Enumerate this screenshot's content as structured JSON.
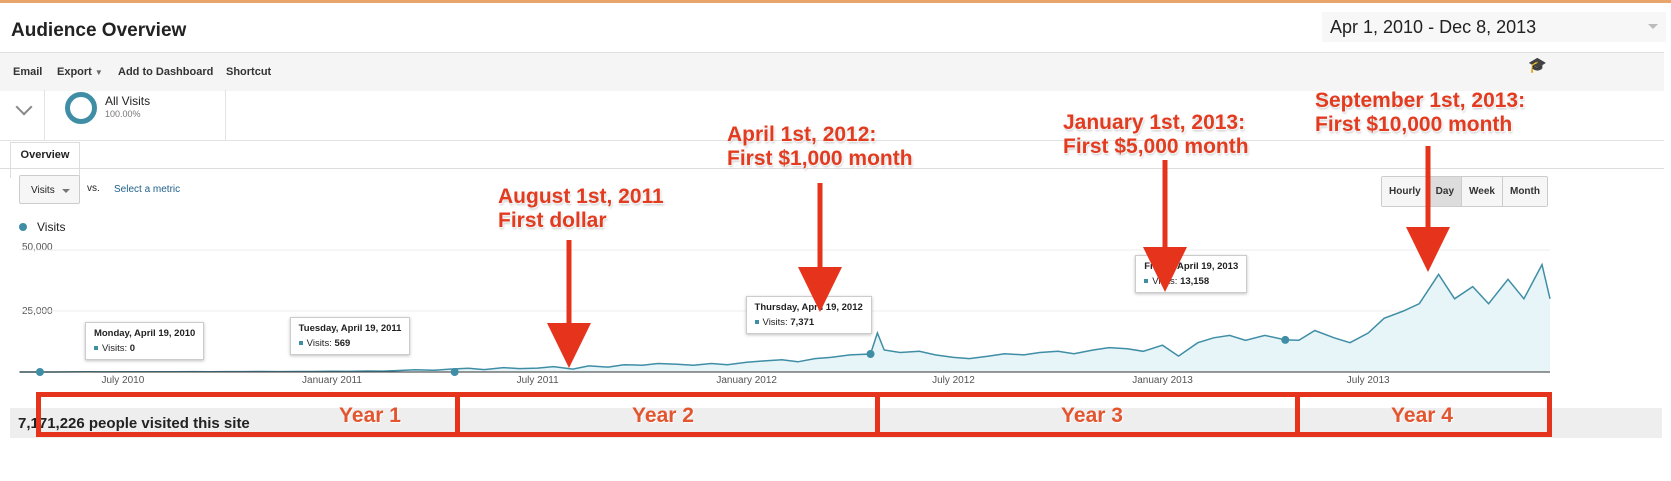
{
  "header": {
    "title": "Audience Overview",
    "date_range": "Apr 1, 2010 - Dec 8, 2013"
  },
  "toolbar": {
    "email": "Email",
    "export": "Export",
    "add_to_dashboard": "Add to Dashboard",
    "shortcut": "Shortcut",
    "help_icon": "graduation-cap-icon"
  },
  "segment": {
    "name": "All Visits",
    "percent": "100.00%"
  },
  "tabs": [
    {
      "label": "Overview"
    }
  ],
  "metric": {
    "selected": "Visits",
    "vs": "vs.",
    "select_metric": "Select a metric"
  },
  "granularity": {
    "options": [
      "Hourly",
      "Day",
      "Week",
      "Month"
    ],
    "active": "Day"
  },
  "colors": {
    "line": "#3f8ea6",
    "fill": "#e7f4f8",
    "annotation": "#e5331c"
  },
  "chart_data": {
    "type": "area",
    "legend": "Visits",
    "y_ticks": [
      "50,000",
      "25,000"
    ],
    "ylim": [
      0,
      50000
    ],
    "x_ticks": [
      "July 2010",
      "January 2011",
      "July 2011",
      "January 2012",
      "July 2012",
      "January 2013",
      "July 2013"
    ],
    "xlim": [
      "2010-04-01",
      "2013-12-08"
    ],
    "points": [
      [
        "2010-04-01",
        0
      ],
      [
        "2010-04-15",
        0
      ],
      [
        "2010-05-01",
        0
      ],
      [
        "2010-05-15",
        50
      ],
      [
        "2010-06-01",
        80
      ],
      [
        "2010-06-15",
        60
      ],
      [
        "2010-07-01",
        100
      ],
      [
        "2010-07-15",
        90
      ],
      [
        "2010-08-01",
        120
      ],
      [
        "2010-08-15",
        100
      ],
      [
        "2010-09-01",
        150
      ],
      [
        "2010-09-15",
        120
      ],
      [
        "2010-10-01",
        180
      ],
      [
        "2010-10-15",
        150
      ],
      [
        "2010-11-01",
        200
      ],
      [
        "2010-11-15",
        170
      ],
      [
        "2010-12-01",
        220
      ],
      [
        "2010-12-15",
        200
      ],
      [
        "2011-01-01",
        300
      ],
      [
        "2011-01-15",
        250
      ],
      [
        "2011-02-01",
        400
      ],
      [
        "2011-02-15",
        350
      ],
      [
        "2011-03-01",
        600
      ],
      [
        "2011-03-15",
        900
      ],
      [
        "2011-04-01",
        700
      ],
      [
        "2011-04-15",
        1200
      ],
      [
        "2011-05-01",
        1500
      ],
      [
        "2011-05-15",
        1000
      ],
      [
        "2011-06-01",
        1800
      ],
      [
        "2011-06-15",
        1400
      ],
      [
        "2011-07-01",
        1600
      ],
      [
        "2011-07-15",
        2200
      ],
      [
        "2011-08-01",
        1200
      ],
      [
        "2011-08-15",
        2500
      ],
      [
        "2011-09-01",
        2000
      ],
      [
        "2011-09-15",
        3000
      ],
      [
        "2011-10-01",
        2800
      ],
      [
        "2011-10-15",
        3500
      ],
      [
        "2011-11-01",
        3200
      ],
      [
        "2011-11-15",
        2800
      ],
      [
        "2011-12-01",
        3500
      ],
      [
        "2011-12-15",
        3000
      ],
      [
        "2012-01-01",
        4000
      ],
      [
        "2012-01-15",
        4500
      ],
      [
        "2012-02-01",
        5000
      ],
      [
        "2012-02-15",
        4200
      ],
      [
        "2012-03-01",
        5500
      ],
      [
        "2012-03-15",
        6000
      ],
      [
        "2012-04-01",
        7000
      ],
      [
        "2012-04-19",
        7371
      ],
      [
        "2012-04-25",
        16000
      ],
      [
        "2012-05-01",
        9000
      ],
      [
        "2012-05-15",
        8000
      ],
      [
        "2012-06-01",
        8500
      ],
      [
        "2012-06-15",
        7000
      ],
      [
        "2012-07-01",
        6000
      ],
      [
        "2012-07-15",
        5500
      ],
      [
        "2012-08-01",
        6500
      ],
      [
        "2012-08-15",
        7500
      ],
      [
        "2012-09-01",
        7000
      ],
      [
        "2012-09-15",
        8000
      ],
      [
        "2012-10-01",
        8500
      ],
      [
        "2012-10-15",
        7500
      ],
      [
        "2012-11-01",
        9000
      ],
      [
        "2012-11-15",
        10000
      ],
      [
        "2012-12-01",
        9500
      ],
      [
        "2012-12-15",
        8500
      ],
      [
        "2013-01-01",
        11000
      ],
      [
        "2013-01-15",
        6500
      ],
      [
        "2013-02-01",
        12000
      ],
      [
        "2013-02-15",
        14000
      ],
      [
        "2013-03-01",
        15000
      ],
      [
        "2013-03-15",
        13000
      ],
      [
        "2013-04-01",
        15000
      ],
      [
        "2013-04-19",
        13158
      ],
      [
        "2013-05-01",
        13000
      ],
      [
        "2013-05-15",
        17000
      ],
      [
        "2013-06-01",
        14000
      ],
      [
        "2013-06-15",
        12000
      ],
      [
        "2013-07-01",
        16000
      ],
      [
        "2013-07-15",
        22000
      ],
      [
        "2013-08-01",
        25000
      ],
      [
        "2013-08-15",
        28000
      ],
      [
        "2013-09-01",
        40000
      ],
      [
        "2013-09-15",
        30000
      ],
      [
        "2013-10-01",
        35000
      ],
      [
        "2013-10-15",
        28000
      ],
      [
        "2013-11-01",
        38000
      ],
      [
        "2013-11-15",
        30000
      ],
      [
        "2013-12-01",
        44000
      ],
      [
        "2013-12-08",
        30000
      ]
    ],
    "tooltips": [
      {
        "date": "Monday, April 19, 2010",
        "label": "Visits:",
        "value": "0",
        "x": "2010-04-19"
      },
      {
        "date": "Tuesday, April 19, 2011",
        "label": "Visits:",
        "value": "569",
        "x": "2011-04-19"
      },
      {
        "date": "Thursday, April 19, 2012",
        "label": "Visits:",
        "value": "7,371",
        "x": "2012-04-19"
      },
      {
        "date": "Friday, April 19, 2013",
        "label": "Visits:",
        "value": "13,158",
        "x": "2013-04-19"
      }
    ]
  },
  "annotations": [
    {
      "line1": "August 1st, 2011",
      "line2": "First dollar"
    },
    {
      "line1": "April 1st, 2012:",
      "line2": "First $1,000 month"
    },
    {
      "line1": "January 1st, 2013:",
      "line2": "First $5,000 month"
    },
    {
      "line1": "September 1st, 2013:",
      "line2": "First $10,000 month"
    }
  ],
  "years": [
    "Year 1",
    "Year 2",
    "Year 3",
    "Year 4"
  ],
  "summary": "7,171,226 people visited this site"
}
